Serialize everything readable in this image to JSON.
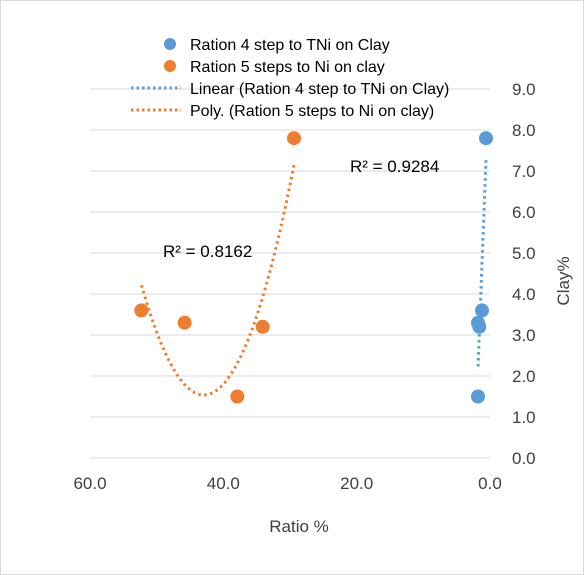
{
  "chart_data": {
    "type": "scatter",
    "title": "",
    "xlabel": "Ratio %",
    "ylabel": "Clay%",
    "x_reversed": true,
    "xlim": [
      0,
      60
    ],
    "ylim": [
      0,
      9
    ],
    "x_ticks": [
      "60.0",
      "40.0",
      "20.0",
      "0.0"
    ],
    "y_ticks": [
      "0.0",
      "1.0",
      "2.0",
      "3.0",
      "4.0",
      "5.0",
      "6.0",
      "7.0",
      "8.0",
      "9.0"
    ],
    "grid": "horizontal",
    "legend_position": "top",
    "series": [
      {
        "name": "Ration 4 step to TNi on Clay",
        "color": "#5b9bd5",
        "marker": "circle",
        "points": [
          [
            1.8,
            1.5
          ],
          [
            1.6,
            3.2
          ],
          [
            1.8,
            3.3
          ],
          [
            1.2,
            3.6
          ],
          [
            0.6,
            7.8
          ]
        ]
      },
      {
        "name": "Ration 5 steps to Ni on clay",
        "color": "#ed7d31",
        "marker": "circle",
        "points": [
          [
            52.3,
            3.6
          ],
          [
            45.8,
            3.3
          ],
          [
            37.9,
            1.5
          ],
          [
            34.1,
            3.2
          ],
          [
            29.4,
            7.8
          ]
        ]
      }
    ],
    "trendlines": [
      {
        "name": "Linear (Ration 4 step to TNi on Clay)",
        "kind": "linear",
        "series": 0,
        "color": "#5b9bd5",
        "r2_label": "R² = 0.9284"
      },
      {
        "name": "Poly. (Ration 5 steps to Ni on clay)",
        "kind": "poly2",
        "series": 1,
        "color": "#ed7d31",
        "r2_label": "R² = 0.8162"
      }
    ]
  }
}
